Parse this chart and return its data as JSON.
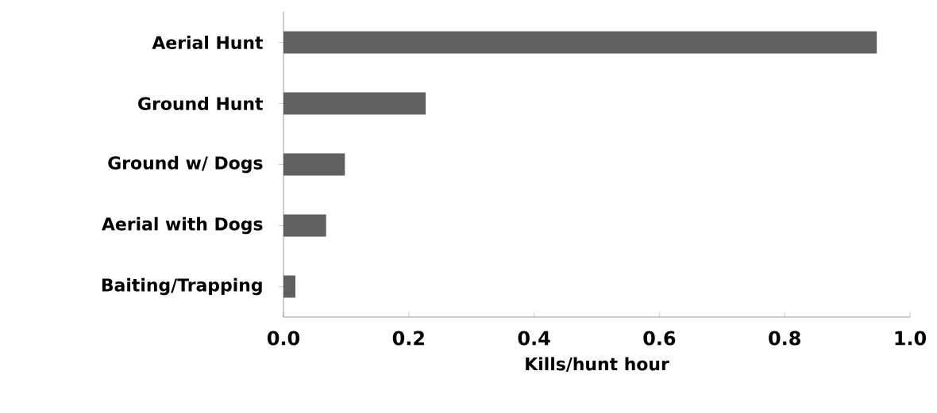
{
  "chart_data": {
    "type": "bar",
    "orientation": "horizontal",
    "xlabel": "Kills/hunt hour",
    "categories": [
      "Aerial Hunt",
      "Ground Hunt",
      "Ground w/ Dogs",
      "Aerial with Dogs",
      "Baiting/Trapping"
    ],
    "values": [
      0.947,
      0.227,
      0.098,
      0.068,
      0.019
    ],
    "color": "#606060",
    "xlim": [
      0,
      1
    ],
    "xticks": [
      {
        "value": 0,
        "label": "0.0"
      },
      {
        "value": 0.2,
        "label": "0.2"
      },
      {
        "value": 0.4,
        "label": "0.4"
      },
      {
        "value": 0.6,
        "label": "0.6"
      },
      {
        "value": 0.8,
        "label": "0.8"
      },
      {
        "value": 1,
        "label": "1.0"
      }
    ],
    "grid": false
  }
}
